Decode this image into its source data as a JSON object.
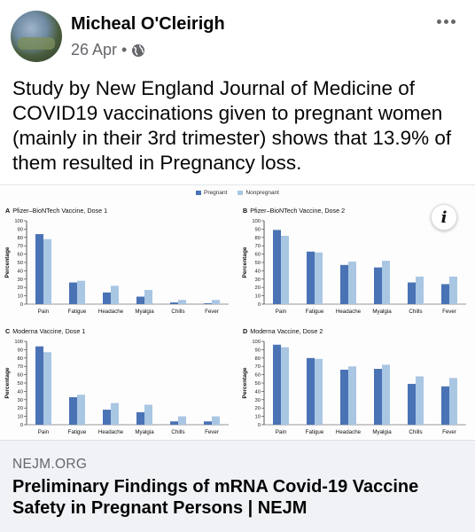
{
  "post": {
    "author": "Micheal O'Cleirigh",
    "date": "26 Apr",
    "separator": "•",
    "privacy_icon": "globe-icon",
    "more_icon": "more-options-icon",
    "text": "Study by New England Journal of Medicine of COVID19 vaccinations given to pregnant women (mainly in their 3rd trimester) shows that 13.9% of them resulted in Pregnancy loss."
  },
  "figure": {
    "legend": [
      {
        "name": "Pregnant",
        "color": "#4a73b5"
      },
      {
        "name": "Nonpregnant",
        "color": "#a9c6e3"
      }
    ],
    "info_icon": "info-icon",
    "info_label": "i"
  },
  "chart_data": [
    {
      "type": "bar",
      "letter": "A",
      "title": "Pfizer–BioNTech Vaccine, Dose 1",
      "ylabel": "Percentage",
      "ylim": [
        0,
        100
      ],
      "yticks": [
        0,
        10,
        20,
        30,
        40,
        50,
        60,
        70,
        80,
        90,
        100
      ],
      "categories": [
        "Pain",
        "Fatigue",
        "Headache",
        "Myalgia",
        "Chills",
        "Fever"
      ],
      "series": [
        {
          "name": "Pregnant",
          "values": [
            84,
            26,
            14,
            9,
            2,
            1
          ]
        },
        {
          "name": "Nonpregnant",
          "values": [
            78,
            28,
            22,
            17,
            5,
            5
          ]
        }
      ]
    },
    {
      "type": "bar",
      "letter": "B",
      "title": "Pfizer–BioNTech Vaccine, Dose 2",
      "ylabel": "Percentage",
      "ylim": [
        0,
        100
      ],
      "yticks": [
        0,
        10,
        20,
        30,
        40,
        50,
        60,
        70,
        80,
        90,
        100
      ],
      "categories": [
        "Pain",
        "Fatigue",
        "Headache",
        "Myalgia",
        "Chills",
        "Fever"
      ],
      "series": [
        {
          "name": "Pregnant",
          "values": [
            89,
            63,
            47,
            44,
            26,
            24
          ]
        },
        {
          "name": "Nonpregnant",
          "values": [
            82,
            62,
            51,
            52,
            33,
            33
          ]
        }
      ]
    },
    {
      "type": "bar",
      "letter": "C",
      "title": "Moderna Vaccine, Dose 1",
      "ylabel": "Percentage",
      "ylim": [
        0,
        100
      ],
      "yticks": [
        0,
        10,
        20,
        30,
        40,
        50,
        60,
        70,
        80,
        90,
        100
      ],
      "categories": [
        "Pain",
        "Fatigue",
        "Headache",
        "Myalgia",
        "Chills",
        "Fever"
      ],
      "series": [
        {
          "name": "Pregnant",
          "values": [
            94,
            33,
            18,
            15,
            4,
            4
          ]
        },
        {
          "name": "Nonpregnant",
          "values": [
            87,
            36,
            26,
            24,
            10,
            10
          ]
        }
      ]
    },
    {
      "type": "bar",
      "letter": "D",
      "title": "Moderna Vaccine, Dose 2",
      "ylabel": "Percentage",
      "ylim": [
        0,
        100
      ],
      "yticks": [
        0,
        10,
        20,
        30,
        40,
        50,
        60,
        70,
        80,
        90,
        100
      ],
      "categories": [
        "Pain",
        "Fatigue",
        "Headache",
        "Myalgia",
        "Chills",
        "Fever"
      ],
      "series": [
        {
          "name": "Pregnant",
          "values": [
            96,
            80,
            66,
            67,
            49,
            46
          ]
        },
        {
          "name": "Nonpregnant",
          "values": [
            93,
            79,
            70,
            72,
            58,
            56
          ]
        }
      ]
    }
  ],
  "link": {
    "domain": "NEJM.ORG",
    "title": "Preliminary Findings of mRNA Covid-19 Vaccine Safety in Pregnant Persons | NEJM"
  }
}
